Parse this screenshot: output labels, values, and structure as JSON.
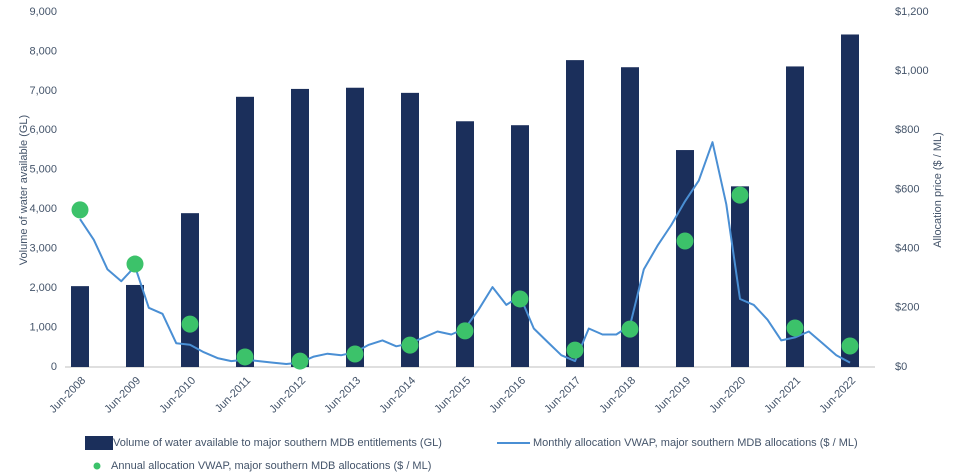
{
  "chart_data": {
    "type": "bar-line-scatter",
    "ylabel": "Volume of water available (GL)",
    "y2label": "Allocation price ($ / ML)",
    "categories": [
      "Jun-2008",
      "Jun-2009",
      "Jun-2010",
      "Jun-2011",
      "Jun-2012",
      "Jun-2013",
      "Jun-2014",
      "Jun-2015",
      "Jun-2016",
      "Jun-2017",
      "Jun-2018",
      "Jun-2019",
      "Jun-2020",
      "Jun-2021",
      "Jun-2022"
    ],
    "ylim": [
      0,
      9000
    ],
    "yticks": [
      0,
      {
        "value": 1000,
        "label": "1,000"
      },
      {
        "value": 2000,
        "label": "2,000"
      },
      {
        "value": 3000,
        "label": "3,000"
      },
      {
        "value": 4000,
        "label": "4,000"
      },
      {
        "value": 5000,
        "label": "5,000"
      },
      {
        "value": 6000,
        "label": "6,000"
      },
      {
        "value": 7000,
        "label": "7,000"
      },
      {
        "value": 8000,
        "label": "8,000"
      },
      {
        "value": 9000,
        "label": "9,000"
      }
    ],
    "y2lim": [
      0,
      1200
    ],
    "y2ticks": [
      {
        "value": 0,
        "label": "$0"
      },
      {
        "value": 200,
        "label": "$200"
      },
      {
        "value": 400,
        "label": "$400"
      },
      {
        "value": 600,
        "label": "$600"
      },
      {
        "value": 800,
        "label": "$800"
      },
      {
        "value": 1000,
        "label": "$1,000"
      },
      {
        "value": 1200,
        "label": "$1,200"
      }
    ],
    "series": [
      {
        "name": "Volume of water available to major southern MDB entitlements (GL)",
        "type": "bar",
        "color": "#1b2f5b",
        "values": [
          2050,
          2080,
          3900,
          6850,
          7050,
          7080,
          6950,
          6230,
          6130,
          7780,
          7600,
          5500,
          4580,
          7620,
          8430
        ]
      },
      {
        "name": "Monthly allocation VWAP, major southern MDB allocations ($ / ML)",
        "type": "line",
        "axis": "y2",
        "color": "#4a8fd4",
        "x": [
          "Jun-2008",
          "Sep-2008",
          "Dec-2008",
          "Mar-2009",
          "Jun-2009",
          "Sep-2009",
          "Dec-2009",
          "Mar-2010",
          "Jun-2010",
          "Sep-2010",
          "Dec-2010",
          "Mar-2011",
          "Jun-2011",
          "Sep-2011",
          "Dec-2011",
          "Mar-2012",
          "Jun-2012",
          "Sep-2012",
          "Dec-2012",
          "Mar-2013",
          "Jun-2013",
          "Sep-2013",
          "Dec-2013",
          "Mar-2014",
          "Jun-2014",
          "Sep-2014",
          "Dec-2014",
          "Mar-2015",
          "Jun-2015",
          "Sep-2015",
          "Dec-2015",
          "Mar-2016",
          "Jun-2016",
          "Sep-2016",
          "Dec-2016",
          "Mar-2017",
          "Jun-2017",
          "Sep-2017",
          "Dec-2017",
          "Mar-2018",
          "Jun-2018",
          "Sep-2018",
          "Dec-2018",
          "Mar-2019",
          "Jun-2019",
          "Sep-2019",
          "Dec-2019",
          "Mar-2020",
          "Jun-2020",
          "Sep-2020",
          "Dec-2020",
          "Mar-2021",
          "Jun-2021",
          "Sep-2021",
          "Dec-2021",
          "Mar-2022",
          "Jun-2022"
        ],
        "values": [
          500,
          430,
          330,
          290,
          340,
          200,
          180,
          80,
          75,
          50,
          30,
          20,
          25,
          20,
          15,
          10,
          15,
          35,
          45,
          40,
          50,
          75,
          90,
          70,
          80,
          100,
          120,
          110,
          130,
          195,
          270,
          210,
          240,
          130,
          85,
          40,
          20,
          130,
          110,
          110,
          140,
          330,
          410,
          480,
          560,
          630,
          760,
          550,
          230,
          210,
          160,
          90,
          100,
          120,
          80,
          40,
          15
        ]
      },
      {
        "name": "Annual allocation VWAP, major southern MDB allocations ($ / ML)",
        "type": "scatter",
        "axis": "y2",
        "color": "#3cc26a",
        "values": [
          531,
          348,
          145,
          34,
          20,
          44,
          74,
          122,
          230,
          57,
          128,
          426,
          581,
          132,
          71
        ]
      }
    ]
  }
}
